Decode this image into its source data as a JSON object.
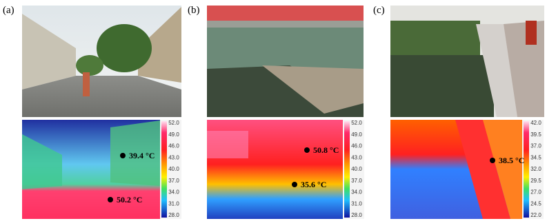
{
  "panels": [
    {
      "label": "(a)",
      "scale": [
        "52.0",
        "49.0",
        "46.0",
        "43.0",
        "40.0",
        "37.0",
        "34.0",
        "31.0",
        "28.0"
      ],
      "annotations": [
        "39.4 °C",
        "50.2 °C"
      ]
    },
    {
      "label": "(b)",
      "scale": [
        "52.0",
        "49.0",
        "46.0",
        "43.0",
        "40.0",
        "37.0",
        "34.0",
        "31.0",
        "28.0"
      ],
      "annotations": [
        "50.8 °C",
        "35.6 °C"
      ]
    },
    {
      "label": "(c)",
      "scale": [
        "42.0",
        "39.5",
        "37.0",
        "34.5",
        "32.0",
        "29.5",
        "27.0",
        "24.5",
        "22.0"
      ],
      "annotations": [
        "38.5 °C"
      ]
    }
  ]
}
